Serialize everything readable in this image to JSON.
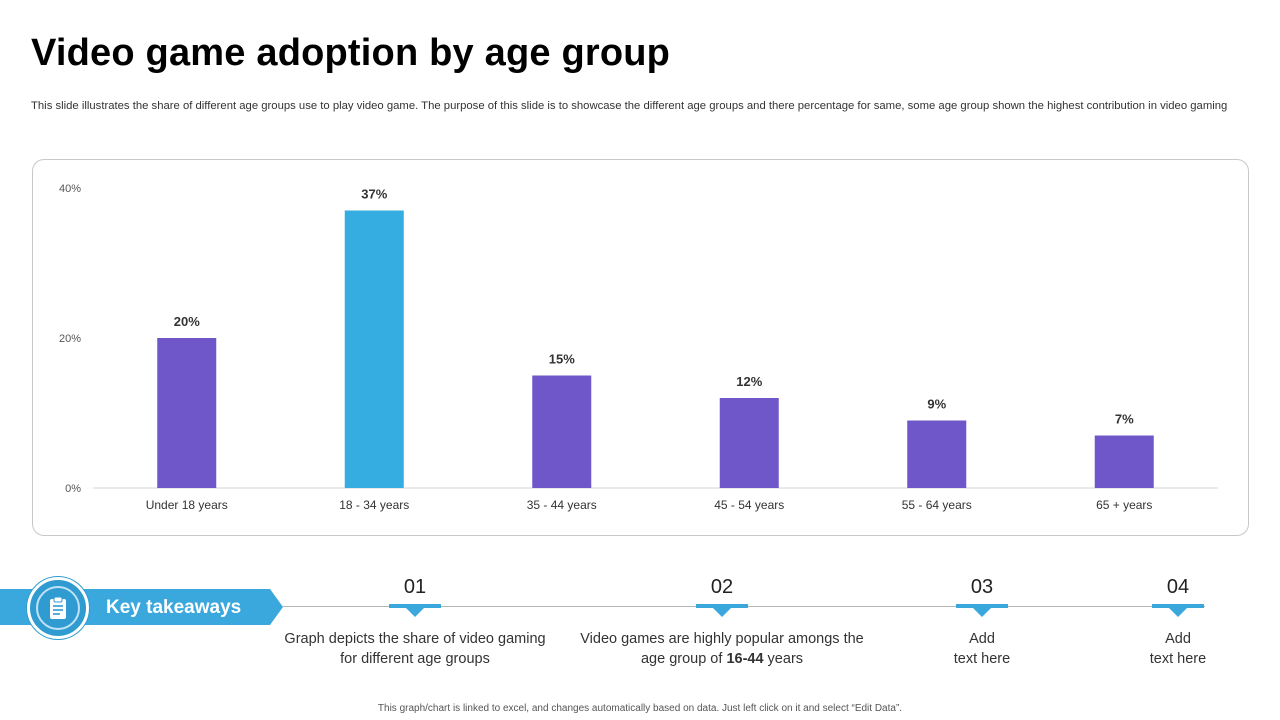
{
  "header": {
    "title": "Video game adoption by age group",
    "subtitle": "This slide illustrates the share of different age groups use to play video game.  The purpose of this slide is to showcase the different age groups and there percentage for same, some age group shown the highest contribution in video gaming"
  },
  "chart_data": {
    "type": "bar",
    "title": "",
    "xlabel": "",
    "ylabel": "",
    "categories": [
      "Under 18 years",
      "18 - 34 years",
      "35 - 44 years",
      "45 - 54 years",
      "55 - 64 years",
      "65 + years"
    ],
    "values": [
      20,
      37,
      15,
      12,
      9,
      7
    ],
    "value_labels": [
      "20%",
      "37%",
      "15%",
      "12%",
      "9%",
      "7%"
    ],
    "ylim": [
      0,
      40
    ],
    "yticks": [
      0,
      20,
      40
    ],
    "ytick_labels": [
      "0%",
      "20%",
      "40%"
    ],
    "highlight_index": 1,
    "colors": {
      "default": "#6f57c9",
      "highlight": "#36ade0"
    },
    "grid": false,
    "legend": "none"
  },
  "takeaways": {
    "label": "Key takeaways",
    "icon": "clipboard-icon",
    "items": [
      {
        "number": "01",
        "text_plain": "Graph depicts the share of video gaming for different age groups"
      },
      {
        "number": "02",
        "text_before": "Video games are highly popular amongs the age group of ",
        "text_bold": "16-44",
        "text_after": " years"
      },
      {
        "number": "03",
        "line1": "Add",
        "line2": "text here"
      },
      {
        "number": "04",
        "line1": "Add",
        "line2": "text here"
      }
    ]
  },
  "footer": {
    "note": "This graph/chart is linked to excel, and changes automatically based on data. Just left click on it and select “Edit Data”."
  },
  "colors": {
    "accent": "#3aa8dc",
    "bar": "#6f57c9"
  }
}
